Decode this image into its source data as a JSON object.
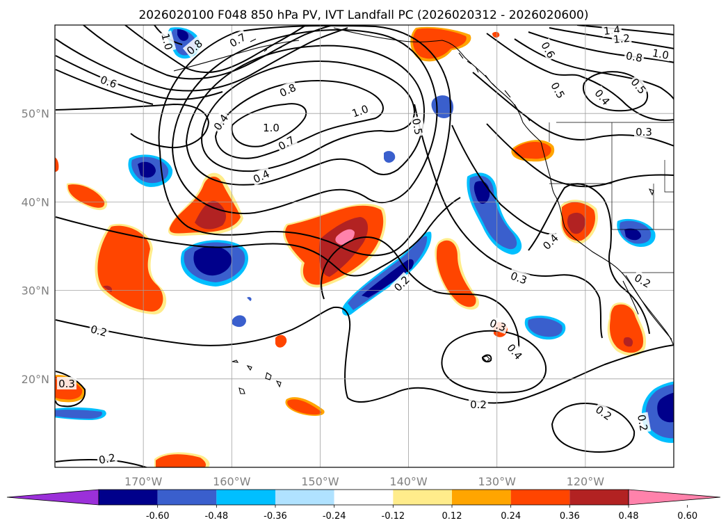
{
  "title": "2026020100 F048 850 hPa PV, IVT Landfall PC (2026020312 - 2026020600)",
  "map": {
    "lon_range": [
      -180,
      -110
    ],
    "lat_range": [
      10,
      60
    ],
    "lon_ticks": [
      {
        "lon": -170,
        "label": "170°W"
      },
      {
        "lon": -160,
        "label": "160°W"
      },
      {
        "lon": -150,
        "label": "150°W"
      },
      {
        "lon": -140,
        "label": "140°W"
      },
      {
        "lon": -130,
        "label": "130°W"
      },
      {
        "lon": -120,
        "label": "120°W"
      }
    ],
    "lat_ticks": [
      {
        "lat": 20,
        "label": "20°N"
      },
      {
        "lat": 30,
        "label": "30°N"
      },
      {
        "lat": 40,
        "label": "40°N"
      },
      {
        "lat": 50,
        "label": "50°N"
      }
    ],
    "grid": true,
    "contour_labels": [
      "1.0",
      "0.8",
      "0.7",
      "0.6",
      "0.8",
      "1.0",
      "1.0",
      "0.7",
      "0.4",
      "0.5",
      "0.4",
      "1.4",
      "1.2",
      "0.8",
      "1.0",
      "0.6",
      "0.5",
      "0.5",
      "0.4",
      "0.3",
      "0.4",
      "0.3",
      "0.2",
      "0.2",
      "0.3",
      "0.4",
      "0.2",
      "0.2",
      "0.2",
      "0.3",
      "0.2",
      "0.2"
    ]
  },
  "colorbar": {
    "ticks": [
      "-0.60",
      "-0.48",
      "-0.36",
      "-0.24",
      "-0.12",
      "0.12",
      "0.24",
      "0.36",
      "0.48",
      "0.60"
    ],
    "colors": [
      "#9b30d9",
      "#00008b",
      "#3a5fcd",
      "#00bfff",
      "#b0e2ff",
      "#ffffff",
      "#ffec8b",
      "#ffa500",
      "#ff4500",
      "#b22222",
      "#ff82ab"
    ]
  },
  "shading_colors": {
    "neg_strong": "#00008b",
    "neg_mid": "#3a5fcd",
    "neg_weak": "#00bfff",
    "pos_weak": "#ffa500",
    "pos_mid": "#ff4500",
    "pos_strong": "#b22222",
    "pos_max": "#ff82ab"
  }
}
